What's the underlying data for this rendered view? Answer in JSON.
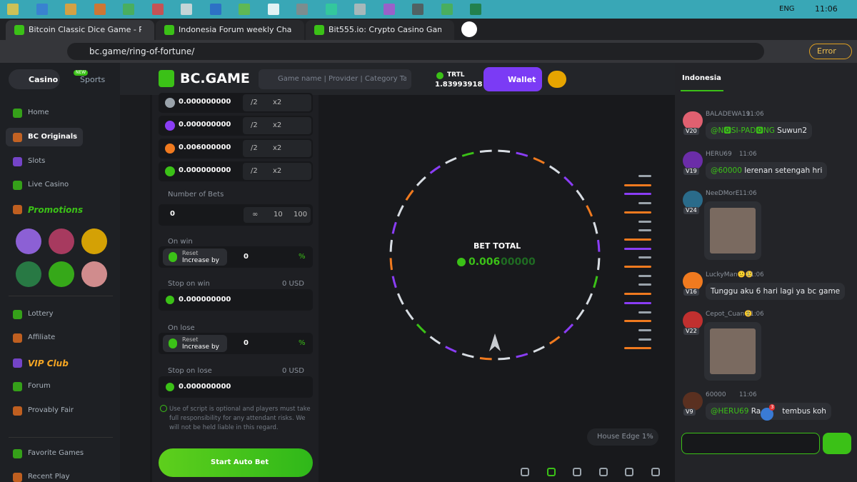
{
  "taskbar": {
    "language": "ENG",
    "time": "11:06"
  },
  "tabs": [
    "Bitcoin Classic Dice Game - Play I",
    "Indonesia Forum weekly Challeng",
    "Bit555.io: Crypto Casino Games &"
  ],
  "address": "bc.game/ring-of-fortune/",
  "browser_status": "Error",
  "sidebar": {
    "casino": "Casino",
    "sports": "Sports",
    "new_badge": "NEW",
    "items": [
      "Home",
      "BC Originals",
      "Slots",
      "Live Casino",
      "Promotions"
    ],
    "items2": [
      "Lottery",
      "Affiliate",
      "VIP Club",
      "Forum",
      "Provably Fair"
    ],
    "items3": [
      "Favorite Games",
      "Recent Play"
    ]
  },
  "header": {
    "logo": "BC.GAME",
    "search_placeholder": "Game name | Provider | Category Tag",
    "currency": "TRTL",
    "balance": "1.83993918",
    "wallet": "Wallet"
  },
  "bet_panel": {
    "color_bets": [
      {
        "amount": "0.000000000",
        "half": "/2",
        "double": "x2"
      },
      {
        "amount": "0.000000000",
        "half": "/2",
        "double": "x2"
      },
      {
        "amount": "0.006000000",
        "half": "/2",
        "double": "x2"
      },
      {
        "amount": "0.000000000",
        "half": "/2",
        "double": "x2"
      }
    ],
    "number_of_bets_label": "Number of Bets",
    "number_of_bets": "0",
    "bet_options": [
      "∞",
      "10",
      "100"
    ],
    "on_win": {
      "label": "On win",
      "reset": "Reset",
      "increase_by": "Increase by",
      "value": "0",
      "unit": "%"
    },
    "stop_on_win": {
      "label": "Stop on win",
      "unit": "0 USD",
      "value": "0.000000000"
    },
    "on_lose": {
      "label": "On lose",
      "reset": "Reset",
      "increase_by": "Increase by",
      "value": "0",
      "unit": "%"
    },
    "stop_on_lose": {
      "label": "Stop on lose",
      "unit": "0 USD",
      "value": "0.000000000"
    },
    "disclaimer": "Use of script is optional and players must take full responsibility for any attendant risks. We will not be held liable in this regard.",
    "start_button": "Start Auto Bet"
  },
  "game": {
    "bet_total_label": "BET TOTAL",
    "bet_total_bright": "0.006",
    "bet_total_dim": "00000",
    "house_edge": "House Edge 1%"
  },
  "chat": {
    "room": "Indonesia",
    "messages": [
      {
        "user": "BALADEWA19",
        "time": "11:06",
        "level": "V20",
        "mention": "@N🅾SI-PAD🅾NG",
        "text": "Suwun2"
      },
      {
        "user": "HERU69",
        "time": "11:06",
        "level": "V19",
        "mention": "@60000",
        "text": "lerenan setengah hri"
      },
      {
        "user": "NeeDMorE",
        "time": "11:06",
        "level": "V24"
      },
      {
        "user": "LuckyMan🙂🙂",
        "time": "11:06",
        "level": "V16",
        "text": "Tunggu aku 6 hari lagi ya bc game"
      },
      {
        "user": "Cepot_Cuan🙂",
        "time": "11:06",
        "level": "V22"
      },
      {
        "user": "60000",
        "time": "11:06",
        "level": "V9",
        "mention": "@HERU69",
        "text": "Ra",
        "text2": "tembus koh",
        "badge": "3"
      }
    ]
  }
}
